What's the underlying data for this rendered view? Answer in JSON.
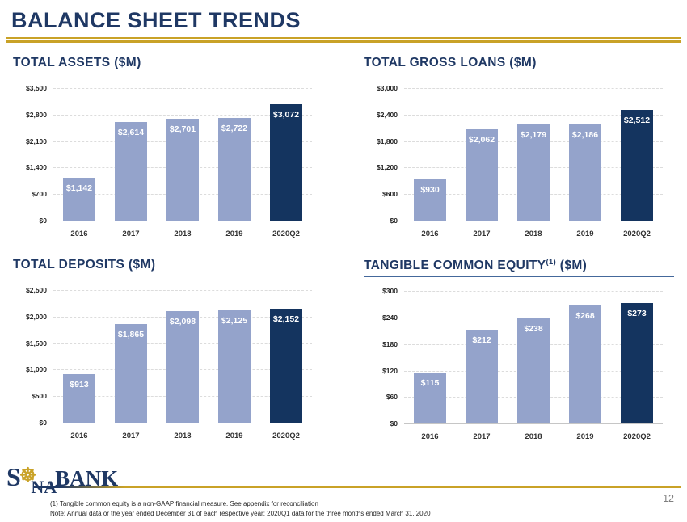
{
  "page": {
    "title": "BALANCE SHEET TRENDS",
    "page_number": "12"
  },
  "colors": {
    "navy": "#1F3864",
    "light_bar": "#94A3CB",
    "dark_bar": "#14345F",
    "gold": "#C9A227",
    "gridline": "#DCDCDC"
  },
  "footer": {
    "logo": {
      "s": "S",
      "wheel_glyph": "☸",
      "na": "NA",
      "bank": "BANK"
    },
    "footnote_line1": "(1) Tangible common equity is a non-GAAP financial measure.  See appendix for reconciliation",
    "footnote_line2": "Note: Annual data or the year ended December 31 of each respective year; 2020Q1 data for the three months ended March 31, 2020"
  },
  "chart_data": [
    {
      "type": "bar",
      "title": "TOTAL ASSETS ($M)",
      "title_sup": "",
      "title_tail": "",
      "categories": [
        "2016",
        "2017",
        "2018",
        "2019",
        "2020Q2"
      ],
      "values": [
        1142,
        2614,
        2701,
        2722,
        3072
      ],
      "bar_labels": [
        "$1,142",
        "$2,614",
        "$2,701",
        "$2,722",
        "$3,072"
      ],
      "highlight_last": true,
      "ylim": [
        0,
        3500
      ],
      "yticks": [
        3500,
        2800,
        2100,
        1400,
        700,
        0
      ],
      "ytick_labels": [
        "$3,500",
        "$2,800",
        "$2,100",
        "$1,400",
        "$700",
        "$0"
      ],
      "grid": "horizontal-dashed",
      "legend": "none"
    },
    {
      "type": "bar",
      "title": "TOTAL GROSS LOANS ($M)",
      "title_sup": "",
      "title_tail": "",
      "categories": [
        "2016",
        "2017",
        "2018",
        "2019",
        "2020Q2"
      ],
      "values": [
        930,
        2062,
        2179,
        2186,
        2512
      ],
      "bar_labels": [
        "$930",
        "$2,062",
        "$2,179",
        "$2,186",
        "$2,512"
      ],
      "highlight_last": true,
      "ylim": [
        0,
        3000
      ],
      "yticks": [
        3000,
        2400,
        1800,
        1200,
        600,
        0
      ],
      "ytick_labels": [
        "$3,000",
        "$2,400",
        "$1,800",
        "$1,200",
        "$600",
        "$0"
      ],
      "grid": "horizontal-dashed",
      "legend": "none"
    },
    {
      "type": "bar",
      "title": "TOTAL DEPOSITS ($M)",
      "title_sup": "",
      "title_tail": "",
      "categories": [
        "2016",
        "2017",
        "2018",
        "2019",
        "2020Q2"
      ],
      "values": [
        913,
        1865,
        2098,
        2125,
        2152
      ],
      "bar_labels": [
        "$913",
        "$1,865",
        "$2,098",
        "$2,125",
        "$2,152"
      ],
      "highlight_last": true,
      "ylim": [
        0,
        2500
      ],
      "yticks": [
        2500,
        2000,
        1500,
        1000,
        500,
        0
      ],
      "ytick_labels": [
        "$2,500",
        "$2,000",
        "$1,500",
        "$1,000",
        "$500",
        "$0"
      ],
      "grid": "horizontal-dashed",
      "legend": "none"
    },
    {
      "type": "bar",
      "title": "TANGIBLE COMMON EQUITY",
      "title_sup": "(1)",
      "title_tail": " ($M)",
      "categories": [
        "2016",
        "2017",
        "2018",
        "2019",
        "2020Q2"
      ],
      "values": [
        115,
        212,
        238,
        268,
        273
      ],
      "bar_labels": [
        "$115",
        "$212",
        "$238",
        "$268",
        "$273"
      ],
      "highlight_last": true,
      "ylim": [
        0,
        300
      ],
      "yticks": [
        300,
        240,
        180,
        120,
        60,
        0
      ],
      "ytick_labels": [
        "$300",
        "$240",
        "$180",
        "$120",
        "$60",
        "$0"
      ],
      "grid": "horizontal-dashed",
      "legend": "none"
    }
  ]
}
